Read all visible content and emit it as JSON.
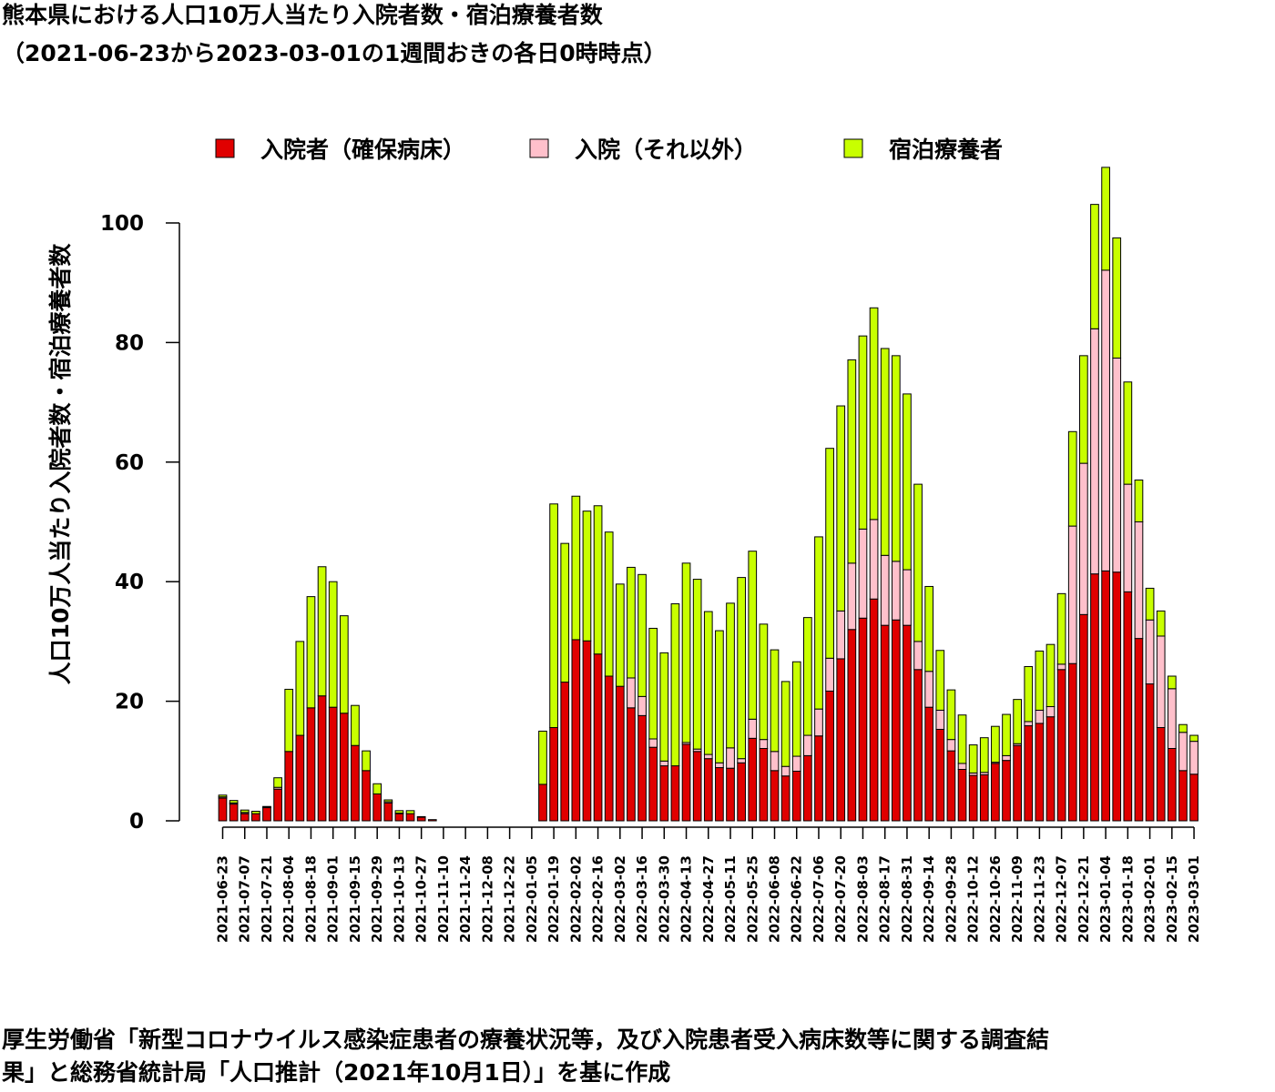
{
  "title": {
    "line1": "熊本県における人口10万人当たり入院者数・宿泊療養者数",
    "line2": "（2021-06-23から2023-03-01の1週間おきの各日0時時点）"
  },
  "source": {
    "line1": "厚生労働省「新型コロナウイルス感染症患者の療養状況等，及び入院患者受入病床数等に関する調査結",
    "line2": "果」と総務省統計局「人口推計（2021年10月1日）」を基に作成"
  },
  "chart_data": {
    "type": "bar",
    "stacked": true,
    "ylabel": "人口10万人当たり入院者数・宿泊療養者数",
    "ylim": [
      0,
      110
    ],
    "yticks": [
      0,
      20,
      40,
      60,
      80,
      100
    ],
    "grid": false,
    "legend_position": "top",
    "categories": [
      "2021-06-23",
      "2021-06-30",
      "2021-07-07",
      "2021-07-14",
      "2021-07-21",
      "2021-07-28",
      "2021-08-04",
      "2021-08-11",
      "2021-08-18",
      "2021-08-25",
      "2021-09-01",
      "2021-09-08",
      "2021-09-15",
      "2021-09-22",
      "2021-09-29",
      "2021-10-06",
      "2021-10-13",
      "2021-10-20",
      "2021-10-27",
      "2021-11-03",
      "2021-11-10",
      "2021-11-17",
      "2021-11-24",
      "2021-12-01",
      "2021-12-08",
      "2021-12-15",
      "2021-12-22",
      "2021-12-29",
      "2022-01-05",
      "2022-01-12",
      "2022-01-19",
      "2022-01-26",
      "2022-02-02",
      "2022-02-09",
      "2022-02-16",
      "2022-02-23",
      "2022-03-02",
      "2022-03-09",
      "2022-03-16",
      "2022-03-23",
      "2022-03-30",
      "2022-04-06",
      "2022-04-13",
      "2022-04-20",
      "2022-04-27",
      "2022-05-04",
      "2022-05-11",
      "2022-05-18",
      "2022-05-25",
      "2022-06-01",
      "2022-06-08",
      "2022-06-15",
      "2022-06-22",
      "2022-06-29",
      "2022-07-06",
      "2022-07-13",
      "2022-07-20",
      "2022-07-27",
      "2022-08-03",
      "2022-08-10",
      "2022-08-17",
      "2022-08-24",
      "2022-08-31",
      "2022-09-07",
      "2022-09-14",
      "2022-09-21",
      "2022-09-28",
      "2022-10-05",
      "2022-10-12",
      "2022-10-19",
      "2022-10-26",
      "2022-11-02",
      "2022-11-09",
      "2022-11-16",
      "2022-11-23",
      "2022-11-30",
      "2022-12-07",
      "2022-12-14",
      "2022-12-21",
      "2022-12-28",
      "2023-01-04",
      "2023-01-11",
      "2023-01-18",
      "2023-01-25",
      "2023-02-01",
      "2023-02-08",
      "2023-02-15",
      "2023-02-22",
      "2023-03-01"
    ],
    "x_tick_labels": [
      "2021-06-23",
      "2021-07-07",
      "2021-07-21",
      "2021-08-04",
      "2021-08-18",
      "2021-09-01",
      "2021-09-15",
      "2021-09-29",
      "2021-10-13",
      "2021-10-27",
      "2021-11-10",
      "2021-11-24",
      "2021-12-08",
      "2021-12-22",
      "2022-01-05",
      "2022-01-19",
      "2022-02-02",
      "2022-02-16",
      "2022-03-02",
      "2022-03-16",
      "2022-03-30",
      "2022-04-13",
      "2022-04-27",
      "2022-05-11",
      "2022-05-25",
      "2022-06-08",
      "2022-06-22",
      "2022-07-06",
      "2022-07-20",
      "2022-08-03",
      "2022-08-17",
      "2022-08-31",
      "2022-09-14",
      "2022-09-28",
      "2022-10-12",
      "2022-10-26",
      "2022-11-09",
      "2022-11-23",
      "2022-12-07",
      "2022-12-21",
      "2023-01-04",
      "2023-01-18",
      "2023-02-01",
      "2023-02-15",
      "2023-03-01"
    ],
    "colors": [
      "#e00000",
      "#ffc0cb",
      "#c8ff00"
    ],
    "series": [
      {
        "name": "入院者（確保病床）",
        "values": [
          3.8,
          2.8,
          1.2,
          1.2,
          2.2,
          5.3,
          11.6,
          14.3,
          18.9,
          20.9,
          19.0,
          18.0,
          12.6,
          8.4,
          4.5,
          3.0,
          1.2,
          1.2,
          0.6,
          0.2,
          0,
          0,
          0,
          0,
          0,
          0,
          0,
          0,
          0,
          6.1,
          15.6,
          23.2,
          30.3,
          30.1,
          27.9,
          24.2,
          22.5,
          18.9,
          17.6,
          12.3,
          9.2,
          9.2,
          12.8,
          11.6,
          10.4,
          8.9,
          8.8,
          9.7,
          13.8,
          12.1,
          8.4,
          7.5,
          8.3,
          10.9,
          14.2,
          21.7,
          27.1,
          32.0,
          33.9,
          37.1,
          32.7,
          33.6,
          32.7,
          25.3,
          19.0,
          15.3,
          11.7,
          8.6,
          7.6,
          7.7,
          9.6,
          10.1,
          12.6,
          15.9,
          16.3,
          17.4,
          25.3,
          26.3,
          34.5,
          41.3,
          41.8,
          41.6,
          38.3,
          30.5,
          22.9,
          15.6,
          12.1,
          8.4,
          7.8
        ]
      },
      {
        "name": "入院（それ以外）",
        "values": [
          0.2,
          0.2,
          0.2,
          0,
          0.1,
          0.3,
          0,
          0,
          0,
          0,
          0,
          0,
          0,
          0,
          0,
          0.2,
          0.1,
          0,
          0,
          0,
          0,
          0,
          0,
          0,
          0,
          0,
          0,
          0,
          0,
          0,
          0,
          0,
          0,
          0,
          0,
          0,
          0,
          5.0,
          3.2,
          1.4,
          0.8,
          0,
          0.3,
          0.4,
          0.7,
          0.8,
          3.4,
          0.7,
          3.2,
          1.5,
          3.2,
          1.6,
          2.5,
          3.4,
          4.5,
          5.5,
          8.0,
          11.1,
          14.9,
          13.3,
          11.7,
          9.8,
          9.3,
          4.7,
          6.0,
          3.2,
          1.9,
          1.0,
          0.4,
          0.4,
          0.2,
          0.8,
          0.3,
          0.7,
          2.2,
          1.7,
          0.9,
          23.0,
          25.3,
          41.0,
          50.3,
          35.8,
          18.0,
          19.5,
          10.7,
          15.3,
          10.0,
          6.4,
          5.5
        ]
      },
      {
        "name": "宿泊療養者",
        "values": [
          0.3,
          0.4,
          0.4,
          0.4,
          0.1,
          1.6,
          10.4,
          15.7,
          18.6,
          21.6,
          21.0,
          16.3,
          6.7,
          3.3,
          1.7,
          0.3,
          0.4,
          0.5,
          0.1,
          0,
          0,
          0,
          0,
          0,
          0,
          0,
          0,
          0,
          0,
          8.9,
          37.4,
          23.2,
          24.0,
          21.7,
          24.8,
          24.1,
          17.1,
          18.5,
          20.4,
          18.5,
          18.1,
          27.1,
          30.0,
          28.4,
          23.9,
          22.1,
          24.2,
          30.3,
          28.1,
          19.3,
          17.0,
          14.2,
          15.8,
          19.7,
          28.8,
          35.1,
          34.3,
          34.0,
          32.3,
          35.4,
          34.6,
          34.4,
          29.4,
          26.3,
          14.2,
          10.0,
          8.3,
          8.1,
          4.7,
          5.8,
          6.0,
          6.9,
          7.4,
          9.2,
          9.9,
          10.4,
          11.8,
          15.8,
          18.0,
          20.8,
          17.2,
          20.1,
          17.1,
          7.0,
          5.3,
          4.2,
          2.1,
          1.3,
          1.0
        ]
      }
    ]
  }
}
